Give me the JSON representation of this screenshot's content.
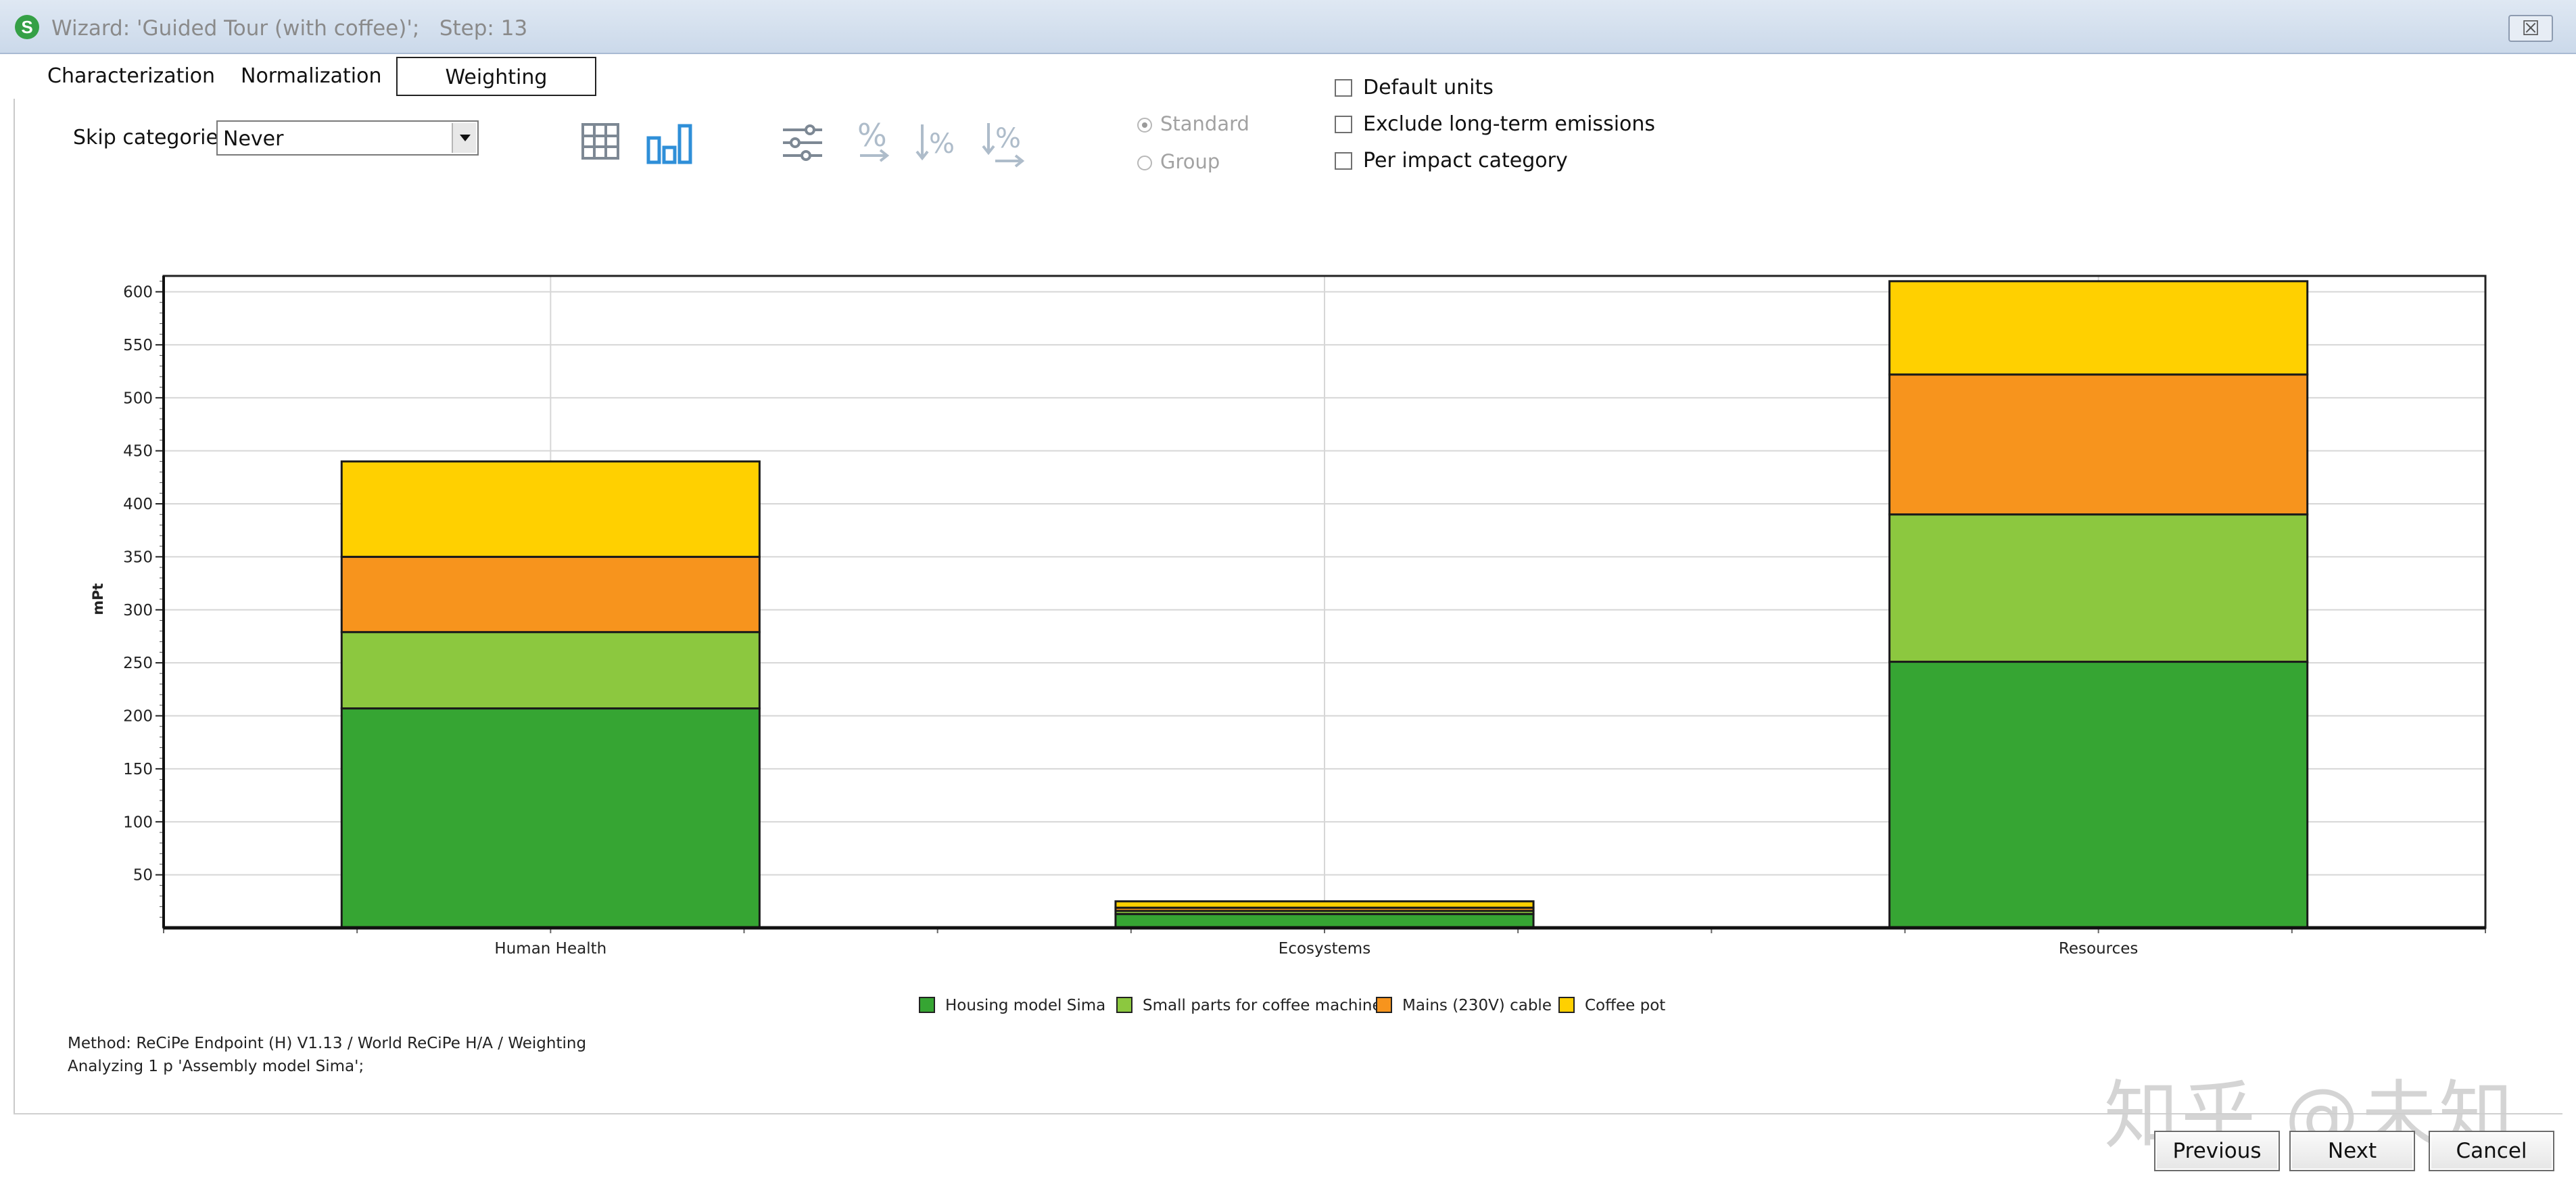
{
  "window": {
    "title": "Wizard: 'Guided Tour (with coffee)';   Step: 13",
    "app_icon": "simapro-s-icon",
    "close_glyph": "☒"
  },
  "tabs": [
    {
      "label": "Characterization",
      "active": false
    },
    {
      "label": "Normalization",
      "active": false
    },
    {
      "label": "Weighting",
      "active": true
    }
  ],
  "toolbar": {
    "skip_label": "Skip categories",
    "skip_value": "Never",
    "icons": [
      "grid-table-icon",
      "bar-chart-icon",
      "sliders-icon",
      "percent-icon",
      "sort-down-icon",
      "sort-percent-icon"
    ],
    "active_icon": "bar-chart-icon",
    "accent_color": "#2f8fd8"
  },
  "radios": [
    {
      "label": "Standard",
      "checked": true,
      "enabled": false
    },
    {
      "label": "Group",
      "checked": false,
      "enabled": false
    }
  ],
  "checkboxes": [
    {
      "label": "Default units",
      "checked": false
    },
    {
      "label": "Exclude long-term emissions",
      "checked": false
    },
    {
      "label": "Per impact category",
      "checked": false
    }
  ],
  "chart_data": {
    "type": "bar",
    "stacked": true,
    "title": "",
    "xlabel": "",
    "ylabel": "mPt",
    "ylim": [
      0,
      615
    ],
    "yticks": [
      50,
      100,
      150,
      200,
      250,
      300,
      350,
      400,
      450,
      500,
      550,
      600
    ],
    "grid": true,
    "legend_position": "bottom-center",
    "categories": [
      "Human Health",
      "Ecosystems",
      "Resources"
    ],
    "series": [
      {
        "name": "Housing model Sima",
        "color": "#36a533",
        "values": [
          207,
          13,
          251
        ]
      },
      {
        "name": "Small parts for coffee machine",
        "color": "#8cc83f",
        "values": [
          72,
          3,
          139
        ]
      },
      {
        "name": "Mains (230V) cable",
        "color": "#f7941d",
        "values": [
          71,
          3,
          132
        ]
      },
      {
        "name": "Coffee pot",
        "color": "#ffd000",
        "values": [
          90,
          6,
          88
        ]
      }
    ]
  },
  "footer": {
    "method": "Method: ReCiPe Endpoint (H) V1.13 / World ReCiPe H/A / Weighting",
    "analyzing": "Analyzing 1 p 'Assembly model Sima';"
  },
  "buttons": {
    "previous": "Previous",
    "next": "Next",
    "cancel": "Cancel"
  },
  "watermark": "知乎 @未知"
}
